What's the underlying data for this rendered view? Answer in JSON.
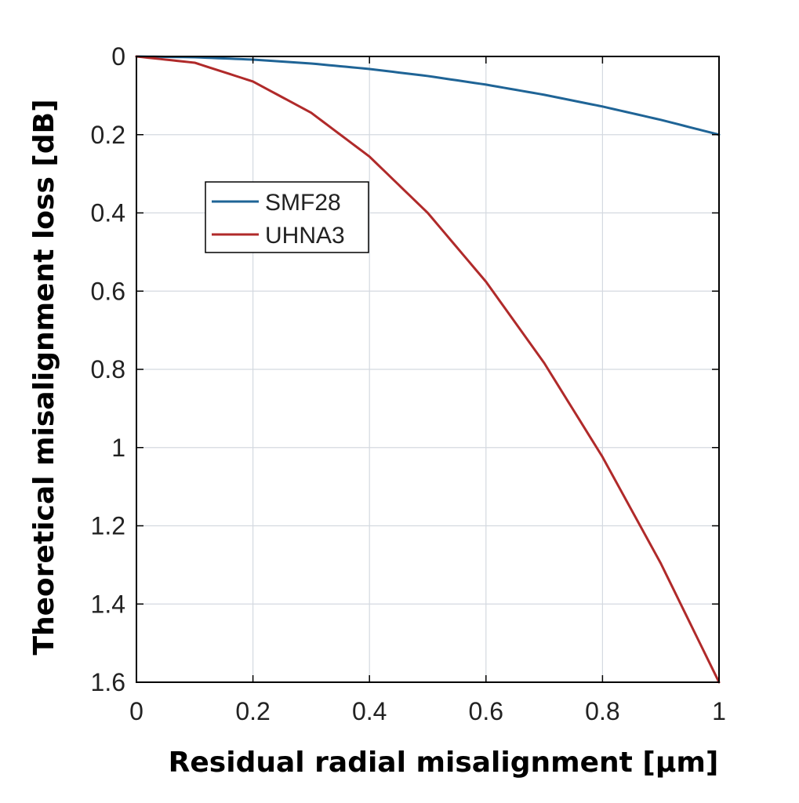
{
  "chart_data": {
    "type": "line",
    "title": "",
    "xlabel": "Residual radial misalignment [μm]",
    "ylabel": "Theoretical misalignment loss [dB]",
    "xlim": [
      0,
      1
    ],
    "ylim": [
      0,
      1.6
    ],
    "y_reversed": true,
    "grid": true,
    "legend_position": "upper-left",
    "x_ticks": [
      0,
      0.2,
      0.4,
      0.6,
      0.8,
      1
    ],
    "x_tick_labels": [
      "0",
      "0.2",
      "0.4",
      "0.6",
      "0.8",
      "1"
    ],
    "y_ticks": [
      0,
      0.2,
      0.4,
      0.6,
      0.8,
      1,
      1.2,
      1.4,
      1.6
    ],
    "y_tick_labels": [
      "0",
      "0.2",
      "0.4",
      "0.6",
      "0.8",
      "1",
      "1.2",
      "1.4",
      "1.6"
    ],
    "x": [
      0,
      0.1,
      0.2,
      0.3,
      0.4,
      0.5,
      0.6,
      0.7,
      0.8,
      0.9,
      1.0
    ],
    "series": [
      {
        "name": "SMF28",
        "color": "#1f6496",
        "values": [
          0,
          0.002,
          0.008,
          0.018,
          0.032,
          0.05,
          0.072,
          0.098,
          0.128,
          0.162,
          0.2
        ]
      },
      {
        "name": "UHNA3",
        "color": "#b02a2a",
        "values": [
          0,
          0.016,
          0.064,
          0.144,
          0.256,
          0.4,
          0.576,
          0.784,
          1.024,
          1.296,
          1.6
        ]
      }
    ]
  }
}
